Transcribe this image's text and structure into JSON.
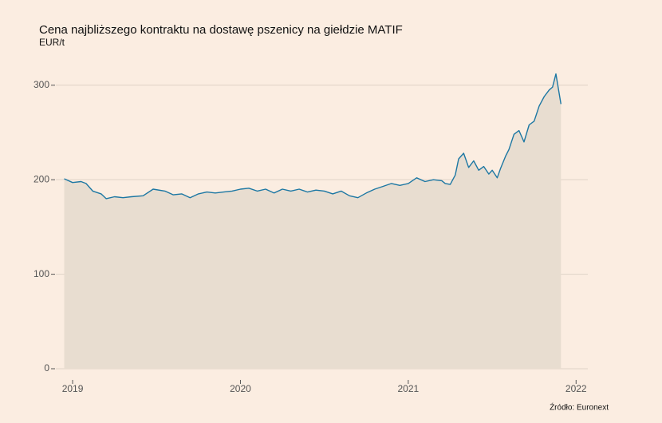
{
  "chart_data": {
    "type": "area",
    "title": "Cena najbliższego kontraktu na dostawę pszenicy na giełdzie MATIF",
    "subtitle": "EUR/t",
    "source": "Źródło: Euronext",
    "x": [
      2018.95,
      2019.0,
      2019.05,
      2019.08,
      2019.12,
      2019.17,
      2019.2,
      2019.25,
      2019.3,
      2019.35,
      2019.42,
      2019.48,
      2019.55,
      2019.6,
      2019.65,
      2019.7,
      2019.75,
      2019.8,
      2019.85,
      2019.9,
      2019.95,
      2020.0,
      2020.05,
      2020.1,
      2020.15,
      2020.2,
      2020.25,
      2020.3,
      2020.35,
      2020.4,
      2020.45,
      2020.5,
      2020.55,
      2020.6,
      2020.65,
      2020.7,
      2020.75,
      2020.8,
      2020.85,
      2020.9,
      2020.95,
      2021.0,
      2021.05,
      2021.1,
      2021.15,
      2021.2,
      2021.22,
      2021.25,
      2021.28,
      2021.3,
      2021.33,
      2021.36,
      2021.39,
      2021.42,
      2021.45,
      2021.48,
      2021.5,
      2021.53,
      2021.55,
      2021.58,
      2021.6,
      2021.63,
      2021.66,
      2021.69,
      2021.72,
      2021.75,
      2021.78,
      2021.81,
      2021.84,
      2021.86,
      2021.88,
      2021.91
    ],
    "values": [
      201,
      197,
      198,
      196,
      188,
      185,
      180,
      182,
      181,
      182,
      183,
      190,
      188,
      184,
      185,
      181,
      185,
      187,
      186,
      187,
      188,
      190,
      191,
      188,
      190,
      186,
      190,
      188,
      190,
      187,
      189,
      188,
      185,
      188,
      183,
      181,
      186,
      190,
      193,
      196,
      194,
      196,
      202,
      198,
      200,
      199,
      196,
      195,
      205,
      222,
      228,
      213,
      220,
      210,
      214,
      206,
      210,
      202,
      212,
      225,
      232,
      248,
      252,
      240,
      258,
      262,
      278,
      288,
      295,
      298,
      312,
      280
    ],
    "line_color": "#1c77a3",
    "fill_color": "#e8ddd0",
    "xlim": [
      2018.9,
      2022.07
    ],
    "xticks": [
      2019,
      2020,
      2021,
      2022
    ],
    "ylim": [
      0,
      315
    ],
    "yticks": [
      0,
      100,
      200,
      300
    ],
    "grid": true
  }
}
